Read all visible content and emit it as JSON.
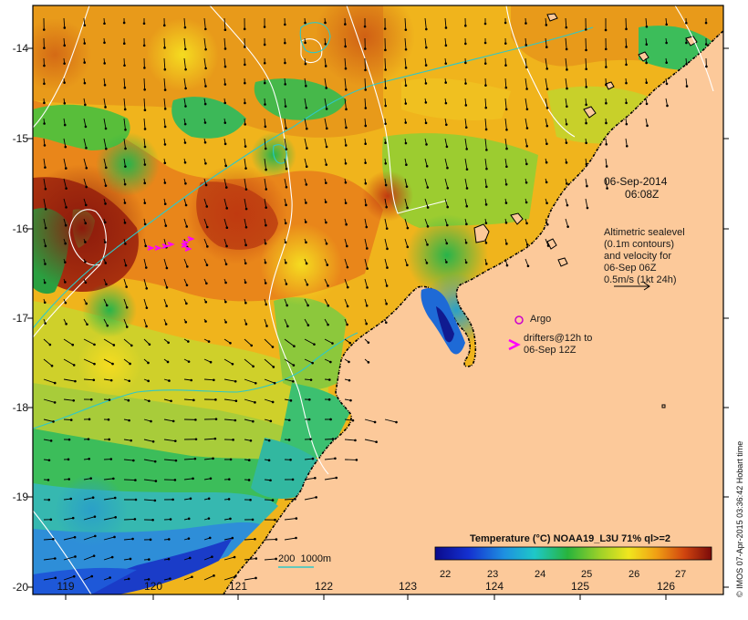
{
  "map": {
    "date_label": "06-Sep-2014",
    "time_label": "06:08Z",
    "altimetry_note": [
      "Altimetric sealevel",
      "(0.1m contours)",
      "and velocity for",
      "06-Sep 06Z",
      "0.5m/s (1kt 24h)"
    ],
    "argo_label": "Argo",
    "drifter_note": [
      "drifters@12h to",
      "06-Sep 12Z"
    ],
    "depth_legend": "200  1000m",
    "colorbar_title": "Temperature (°C) NOAA19_L3U 71% ql>=2",
    "colorbar_ticks": [
      "22",
      "23",
      "24",
      "25",
      "26",
      "27"
    ],
    "credit": "© IMOS 07-Apr-2015 03:36:42 Hobart time",
    "x_ticks": [
      "119",
      "120",
      "121",
      "122",
      "123",
      "124",
      "125",
      "126"
    ],
    "y_ticks": [
      "-14",
      "-15",
      "-16",
      "-17",
      "-18",
      "-19",
      "-20"
    ],
    "colors": {
      "land": "#fcc99a",
      "contour_ssh": "#ffffff",
      "isobath": "#2ec8c8",
      "drifter": "#ff00ff",
      "argo": "#cc00cc"
    }
  }
}
